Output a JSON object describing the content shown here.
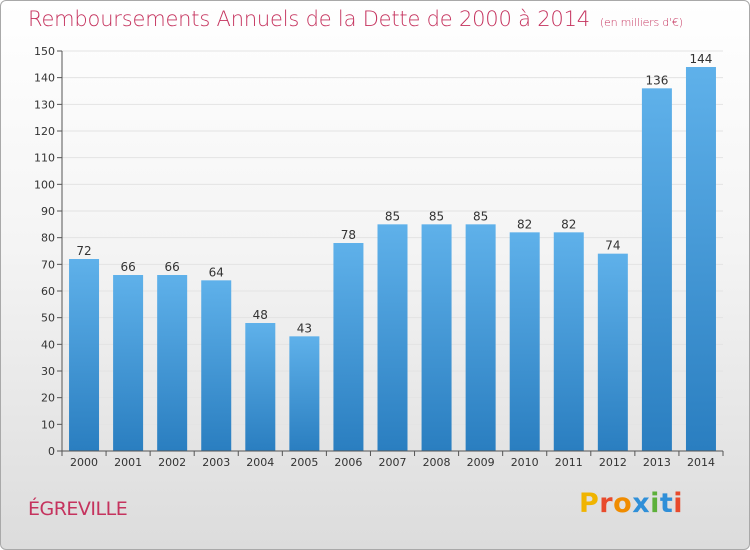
{
  "title": "Remboursements Annuels de la Dette de 2000 à 2014",
  "subtitle": "(en milliers d'€)",
  "location": "ÉGREVILLE",
  "brand": {
    "name": "Proxiti",
    "letters": [
      "P",
      "r",
      "o",
      "x",
      "i",
      "t",
      "i"
    ],
    "letter_colors": [
      "#f0b400",
      "#e84a2c",
      "#f08c00",
      "#2f8fd8",
      "#5db03a",
      "#2f8fd8",
      "#e84a2c"
    ]
  },
  "colors": {
    "title": "#c5335e",
    "bar_top": "#5fb1ea",
    "bar_bottom": "#2a7ec0",
    "axis": "#555555",
    "gridline": "#e3e3e3"
  },
  "chart_data": {
    "type": "bar",
    "title": "Remboursements Annuels de la Dette de 2000 à 2014",
    "xlabel": "",
    "ylabel": "",
    "ylim": [
      0,
      150
    ],
    "y_ticks": [
      0,
      10,
      20,
      30,
      40,
      50,
      60,
      70,
      80,
      90,
      100,
      110,
      120,
      130,
      140,
      150
    ],
    "categories": [
      "2000",
      "2001",
      "2002",
      "2003",
      "2004",
      "2005",
      "2006",
      "2007",
      "2008",
      "2009",
      "2010",
      "2011",
      "2012",
      "2013",
      "2014"
    ],
    "values": [
      72,
      66,
      66,
      64,
      48,
      43,
      78,
      85,
      85,
      85,
      82,
      82,
      74,
      136,
      144
    ],
    "data_labels": [
      "72",
      "66",
      "66",
      "64",
      "48",
      "43",
      "78",
      "85",
      "85",
      "85",
      "82",
      "82",
      "74",
      "136",
      "144"
    ],
    "grid": true,
    "legend": "none"
  }
}
